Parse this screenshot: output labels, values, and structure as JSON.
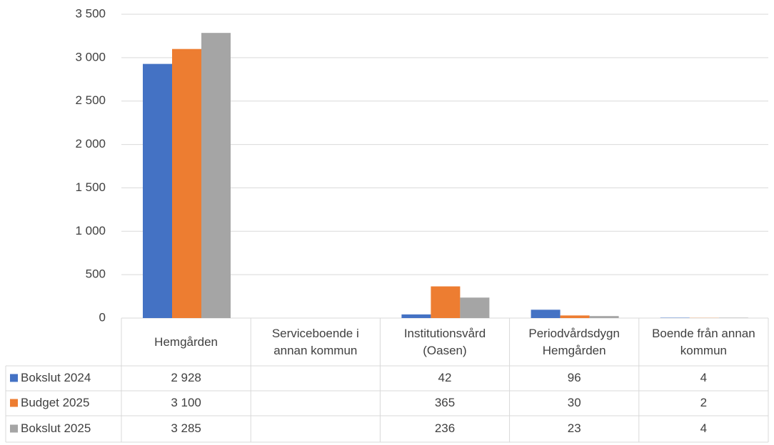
{
  "chart_data": {
    "type": "bar",
    "categories": [
      "Hemgården",
      "Serviceboende i annan kommun",
      "Institutionsvård (Oasen)",
      "Periodvårdsdygn Hemgården",
      "Boende från annan kommun"
    ],
    "series": [
      {
        "name": "Bokslut 2024",
        "color": "#4472c4",
        "values": [
          2928,
          null,
          42,
          96,
          4
        ],
        "value_labels": [
          "2 928",
          null,
          "42",
          "96",
          "4"
        ]
      },
      {
        "name": "Budget 2025",
        "color": "#ed7d31",
        "values": [
          3100,
          null,
          365,
          30,
          2
        ],
        "value_labels": [
          "3 100",
          null,
          "365",
          "30",
          "2"
        ]
      },
      {
        "name": "Bokslut 2025",
        "color": "#a5a5a5",
        "values": [
          3285,
          null,
          236,
          23,
          4
        ],
        "value_labels": [
          "3 285",
          null,
          "236",
          "23",
          "4"
        ]
      }
    ],
    "ylim": [
      0,
      3500
    ],
    "yticks": [
      0,
      500,
      {
        "value": 1000,
        "label": "1 000"
      },
      {
        "value": 1500,
        "label": "1 500"
      },
      {
        "value": 2000,
        "label": "2 000"
      },
      {
        "value": 2500,
        "label": "2 500"
      },
      {
        "value": 3000,
        "label": "3 000"
      },
      {
        "value": 3500,
        "label": "3 500"
      }
    ],
    "grid": true
  }
}
